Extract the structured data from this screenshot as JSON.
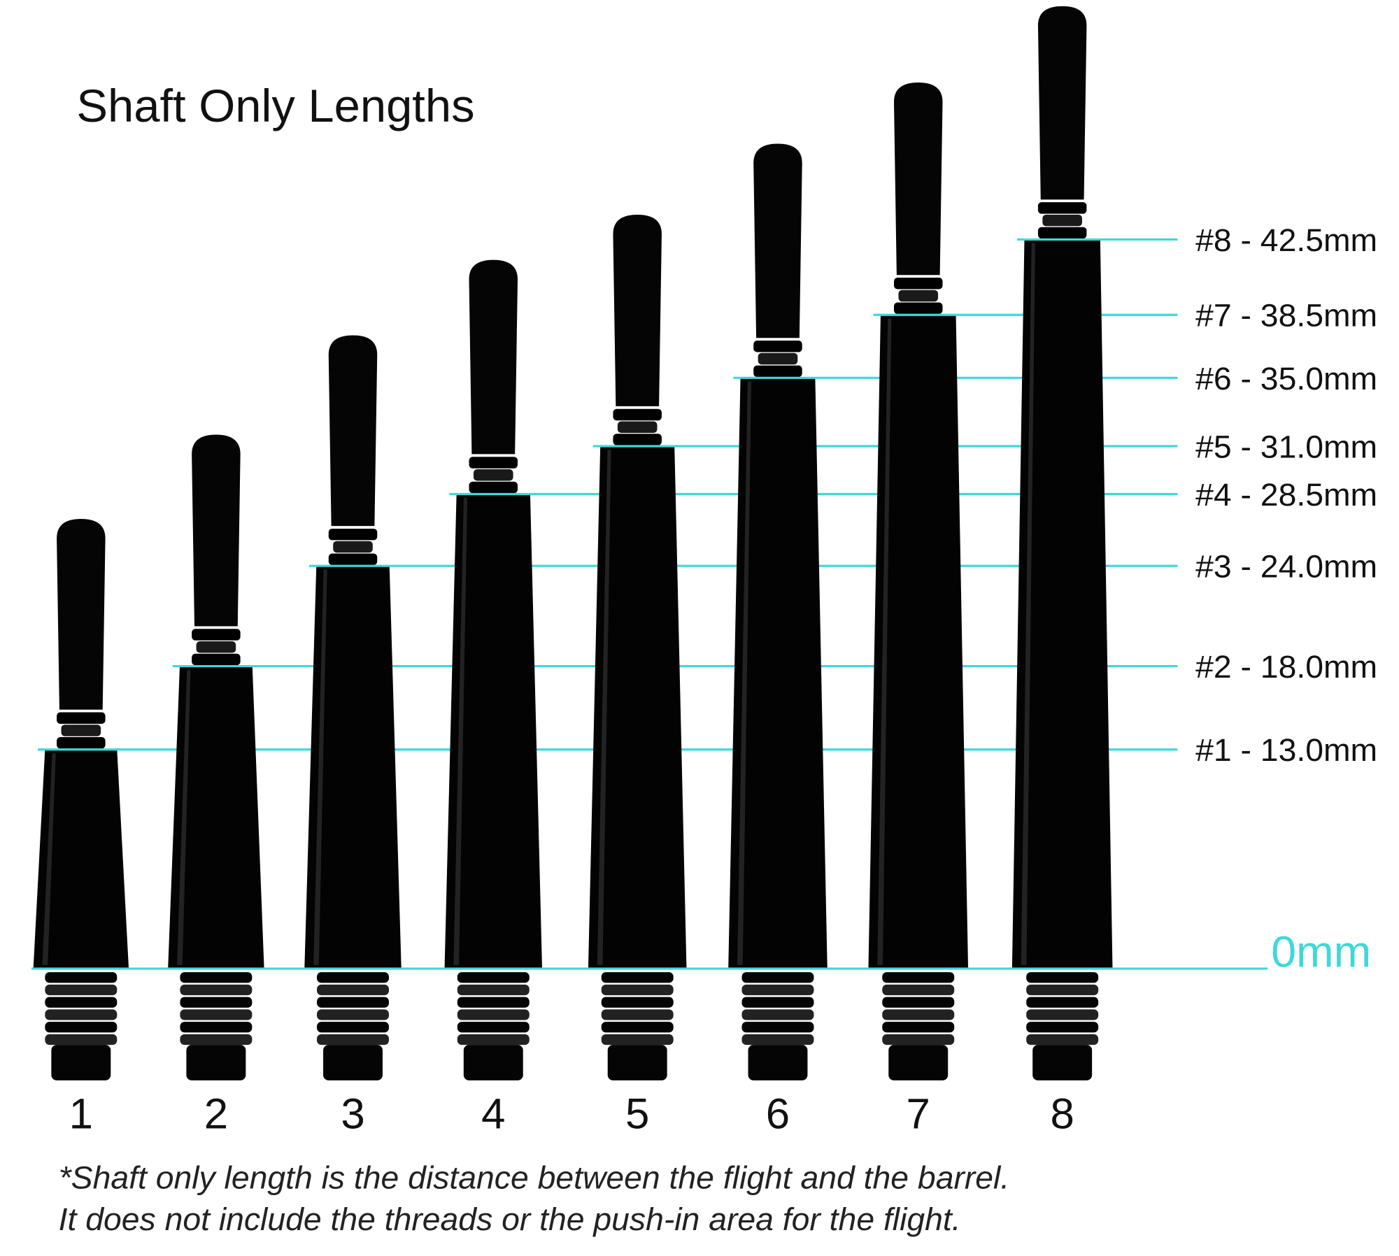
{
  "title": "Shaft Only Lengths",
  "zero_label": "0mm",
  "shafts": [
    {
      "number": "1",
      "length_label": "#1 - 13.0mm"
    },
    {
      "number": "2",
      "length_label": "#2 - 18.0mm"
    },
    {
      "number": "3",
      "length_label": "#3 - 24.0mm"
    },
    {
      "number": "4",
      "length_label": "#4 - 28.5mm"
    },
    {
      "number": "5",
      "length_label": "#5 - 31.0mm"
    },
    {
      "number": "6",
      "length_label": "#6 - 35.0mm"
    },
    {
      "number": "7",
      "length_label": "#7 - 38.5mm"
    },
    {
      "number": "8",
      "length_label": "#8 - 42.5mm"
    }
  ],
  "footnote": [
    "*Shaft only length is the distance between the flight and the barrel.",
    "It does not include the threads or the push-in area for the flight."
  ]
}
